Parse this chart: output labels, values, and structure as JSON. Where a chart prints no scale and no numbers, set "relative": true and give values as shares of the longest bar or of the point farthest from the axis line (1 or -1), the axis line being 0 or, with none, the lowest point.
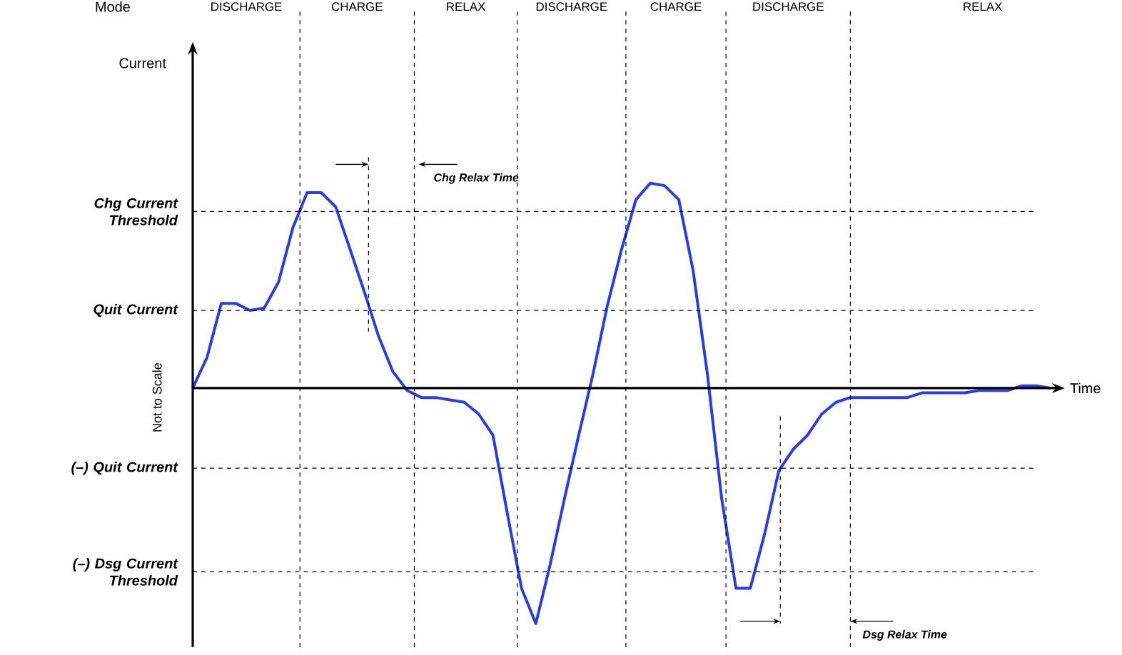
{
  "chart_data": {
    "type": "line",
    "relative": true,
    "xlabel": "Time",
    "categories": [
      null,
      null,
      null,
      null,
      null,
      null,
      null,
      null,
      null,
      null,
      null,
      null,
      null,
      null,
      null,
      null,
      null,
      null,
      null,
      null,
      null,
      null,
      null,
      null,
      null,
      null,
      null,
      null,
      null,
      null,
      null,
      null,
      null,
      null,
      null,
      null,
      null,
      null,
      null,
      null,
      null,
      null,
      null,
      null,
      null,
      null,
      null,
      null,
      null,
      null,
      null,
      null,
      null,
      null,
      null,
      null,
      null,
      null,
      null,
      null,
      null
    ],
    "series": [
      {
        "color": "#2a3ce6",
        "values": [
          0,
          0.13,
          0.36,
          0.36,
          0.33,
          0.34,
          0.45,
          0.68,
          0.83,
          0.83,
          0.77,
          0.59,
          0.41,
          0.22,
          0.07,
          -0.01,
          -0.04,
          -0.04,
          -0.05,
          -0.06,
          -0.11,
          -0.2,
          -0.53,
          -0.85,
          -1,
          -0.75,
          -0.47,
          -0.2,
          0.06,
          0.35,
          0.59,
          0.8,
          0.87,
          0.86,
          0.8,
          0.5,
          0.06,
          -0.47,
          -0.85,
          -0.85,
          -0.62,
          -0.35,
          -0.26,
          -0.2,
          -0.11,
          -0.06,
          -0.04,
          -0.04,
          -0.04,
          -0.04,
          -0.04,
          -0.02,
          -0.02,
          -0.02,
          -0.02,
          -0.01,
          -0.01,
          -0.01,
          0.01,
          0.01,
          0
        ]
      }
    ],
    "ref_lines": [
      {
        "axis": "y",
        "value": 0.75,
        "label": "Chg Current Threshold",
        "line_style": "dashed"
      },
      {
        "axis": "y",
        "value": 0.33,
        "label": "Quit Current",
        "line_style": "dashed"
      },
      {
        "axis": "y",
        "value": -0.34,
        "label": "(–) Quit Current",
        "line_style": "dashed"
      },
      {
        "axis": "y",
        "value": -0.78,
        "label": "(–) Dsg Current Threshold",
        "line_style": "dashed"
      }
    ],
    "annotations": [
      "Mode",
      "Not to Scale",
      "Chg Relax Time",
      "Dsg Relax Time",
      "Current",
      "DISCHARGE",
      "CHARGE",
      "RELAX",
      "DISCHARGE",
      "CHARGE",
      "DISCHARGE",
      "RELAX"
    ]
  }
}
